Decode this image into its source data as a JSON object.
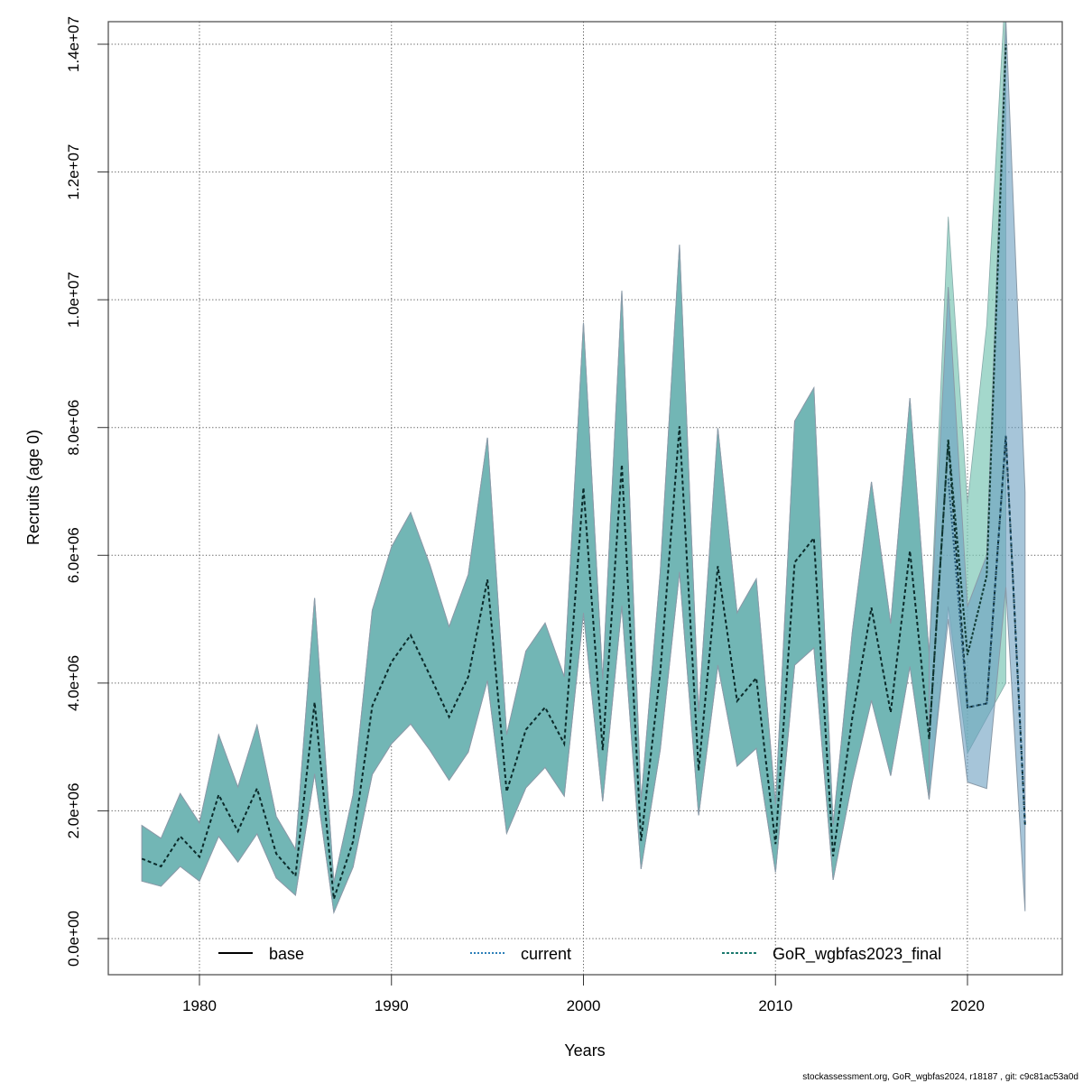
{
  "chart_data": {
    "type": "line",
    "title": "",
    "xlabel": "Years",
    "ylabel": "Recruits (age 0)",
    "xlim": [
      1975.3,
      2025.8
    ],
    "ylim": [
      -500000,
      14350000
    ],
    "x_ticks": [
      1980,
      1990,
      2000,
      2010,
      2020
    ],
    "x_tick_labels": [
      "1980",
      "1990",
      "2000",
      "2010",
      "2020"
    ],
    "y_ticks": [
      0,
      2000000,
      4000000,
      6000000,
      8000000,
      10000000,
      12000000,
      14000000
    ],
    "y_tick_labels": [
      "0.0e+00",
      "2.0e+06",
      "4.0e+06",
      "6.0e+06",
      "8.0e+06",
      "1.0e+07",
      "1.2e+07",
      "1.4e+07"
    ],
    "grid": true,
    "legend": {
      "placement": "bottom",
      "entries": [
        {
          "label": "base",
          "style": "solid",
          "color": "#000000"
        },
        {
          "label": "current",
          "style": "dotted",
          "color": "#2c7fb8"
        },
        {
          "label": "GoR_wgbfas2023_final",
          "style": "dashed",
          "color": "#1b7a6e"
        }
      ]
    },
    "series": [
      {
        "name": "base",
        "color": "#000000",
        "band_color": "#5aa7b5",
        "x": [
          1977,
          1978,
          1979,
          1980,
          1981,
          1982,
          1983,
          1984,
          1985,
          1986,
          1987,
          1988,
          1989,
          1990,
          1991,
          1992,
          1993,
          1994,
          1995,
          1996,
          1997,
          1998,
          1999,
          2000,
          2001,
          2002,
          2003,
          2004,
          2005,
          2006,
          2007,
          2008,
          2009,
          2010,
          2011,
          2012,
          2013,
          2014,
          2015,
          2016,
          2017,
          2018,
          2019,
          2020,
          2021,
          2022,
          2023
        ],
        "values": [
          1250000,
          1130000,
          1600000,
          1280000,
          2250000,
          1680000,
          2350000,
          1330000,
          980000,
          3700000,
          620000,
          1520000,
          3640000,
          4330000,
          4750000,
          4120000,
          3470000,
          4100000,
          5620000,
          2300000,
          3270000,
          3620000,
          3050000,
          7060000,
          2950000,
          7420000,
          1530000,
          4170000,
          8020000,
          2630000,
          5830000,
          3720000,
          4080000,
          1480000,
          5890000,
          6270000,
          1290000,
          3460000,
          5180000,
          3540000,
          6070000,
          3120000,
          7800000,
          3620000,
          3680000,
          7870000,
          1780000
        ],
        "lower": [
          900000,
          820000,
          1130000,
          900000,
          1600000,
          1200000,
          1640000,
          950000,
          680000,
          2580000,
          410000,
          1120000,
          2570000,
          3050000,
          3360000,
          2950000,
          2480000,
          2920000,
          4040000,
          1650000,
          2360000,
          2680000,
          2230000,
          5100000,
          2150000,
          5210000,
          1090000,
          2960000,
          5740000,
          1930000,
          4280000,
          2700000,
          2980000,
          1040000,
          4280000,
          4550000,
          920000,
          2460000,
          3730000,
          2550000,
          4260000,
          2180000,
          5000000,
          2450000,
          2350000,
          5500000,
          430000
        ],
        "upper": [
          1770000,
          1570000,
          2270000,
          1810000,
          3190000,
          2370000,
          3340000,
          1910000,
          1400000,
          5330000,
          880000,
          2250000,
          5140000,
          6130000,
          6670000,
          5850000,
          4880000,
          5700000,
          7840000,
          3190000,
          4500000,
          4940000,
          4100000,
          9640000,
          4050000,
          10140000,
          2150000,
          5740000,
          10860000,
          3550000,
          7990000,
          5100000,
          5630000,
          2100000,
          8100000,
          8620000,
          1780000,
          4800000,
          7150000,
          4930000,
          8460000,
          4460000,
          10200000,
          5200000,
          6000000,
          14400000,
          6990000
        ]
      },
      {
        "name": "current",
        "color": "#2c7fb8",
        "x": [
          2019,
          2020,
          2021,
          2022,
          2023
        ],
        "values": [
          7200000,
          3620000,
          3680000,
          7870000,
          1780000
        ]
      },
      {
        "name": "GoR_wgbfas2023_final",
        "color": "#1b7a6e",
        "band_color": "#7dc8b6",
        "x": [
          2018,
          2019,
          2020,
          2021,
          2022
        ],
        "values": [
          3120000,
          7810000,
          4440000,
          5680000,
          14000000
        ],
        "lower": [
          2180000,
          5200000,
          2900000,
          3450000,
          4000000
        ],
        "upper": [
          4460000,
          11300000,
          6800000,
          9600000,
          15000000
        ]
      }
    ]
  },
  "footer": "stockassessment.org, GoR_wgbfas2024, r18187 , git: c9c81ac53a0d"
}
